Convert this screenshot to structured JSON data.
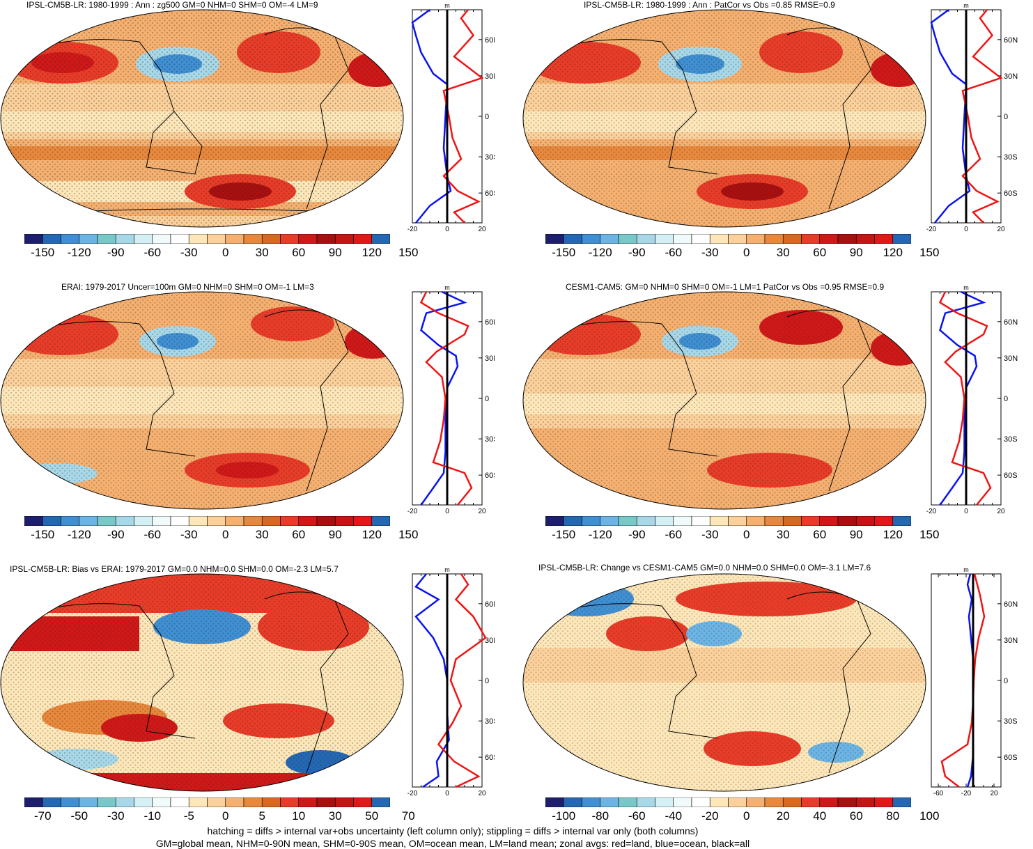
{
  "panels": [
    {
      "title": "IPSL-CM5B-LR: 1980-1999 : Ann : zg500 GM=0 NHM=0 SHM=0 OM=-4 LM=9",
      "colorbar": [
        "-150",
        "-120",
        "-90",
        "-60",
        "-30",
        "0",
        "30",
        "60",
        "90",
        "120",
        "150"
      ],
      "zonal_ticks": [
        "-20",
        "0",
        "20"
      ]
    },
    {
      "title": "IPSL-CM5B-LR: 1980-1999 : Ann : PatCor vs Obs =0.85 RMSE=0.9",
      "colorbar": [
        "-150",
        "-120",
        "-90",
        "-60",
        "-30",
        "0",
        "30",
        "60",
        "90",
        "120",
        "150"
      ],
      "zonal_ticks": [
        "-20",
        "0",
        "20"
      ]
    },
    {
      "title": "ERAI: 1979-2017 Uncer=100m GM=0 NHM=0 SHM=0 OM=-1 LM=3",
      "colorbar": [
        "-150",
        "-120",
        "-90",
        "-60",
        "-30",
        "0",
        "30",
        "60",
        "90",
        "120",
        "150"
      ],
      "zonal_ticks": [
        "-20",
        "0",
        "20"
      ]
    },
    {
      "title": "CESM1-CAM5: GM=0 NHM=0 SHM=0 OM=-1 LM=1 PatCor vs Obs =0.95 RMSE=0.9",
      "colorbar": [
        "-150",
        "-120",
        "-90",
        "-60",
        "-30",
        "0",
        "30",
        "60",
        "90",
        "120",
        "150"
      ],
      "zonal_ticks": [
        "-20",
        "0",
        "20"
      ]
    },
    {
      "title": "IPSL-CM5B-LR: Bias vs ERAI: 1979-2017 GM=0.0 NHM=0.0 SHM=0.0 OM=-2.3 LM=5.7",
      "colorbar": [
        "-70",
        "-50",
        "-30",
        "-10",
        "-5",
        "0",
        "5",
        "10",
        "30",
        "50",
        "70"
      ],
      "zonal_ticks": [
        "-20",
        "0",
        "20"
      ]
    },
    {
      "title": "IPSL-CM5B-LR: Change vs CESM1-CAM5 GM=0.0 NHM=0.0 SHM=0.0 OM=-3.1 LM=7.6",
      "colorbar": [
        "-100",
        "-80",
        "-60",
        "-40",
        "-20",
        "0",
        "20",
        "40",
        "60",
        "80",
        "100"
      ],
      "zonal_ticks": [
        "-60",
        "-20",
        "20"
      ]
    }
  ],
  "lat_labels": [
    "60N",
    "30N",
    "0",
    "30S",
    "60S"
  ],
  "zonal_unit": "m",
  "palette": [
    "#1e1e6e",
    "#2468b4",
    "#3f8fd2",
    "#6cb4e4",
    "#78c8c8",
    "#a8d8e8",
    "#d4f0f4",
    "#f8fcfc",
    "#ffffff",
    "#fde6b8",
    "#fbd09a",
    "#f5b070",
    "#e8883c",
    "#d86820",
    "#e83c28",
    "#d01818",
    "#a81010",
    "#c41414",
    "#e21818",
    "#b2182b"
  ],
  "chart_data": [
    {
      "type": "heatmap",
      "panel": "IPSL-CM5B-LR 1980-1999 Ann zg500",
      "units": "m",
      "levels": [
        -150,
        -120,
        -90,
        -60,
        -30,
        0,
        30,
        60,
        90,
        120,
        150
      ],
      "zonal_avg": {
        "lat_ticks": [
          "60N",
          "30N",
          "0",
          "30S",
          "60S"
        ],
        "xlim": [
          -20,
          20
        ],
        "series": [
          {
            "name": "land",
            "color": "red"
          },
          {
            "name": "ocean",
            "color": "blue"
          },
          {
            "name": "all",
            "color": "black"
          }
        ]
      }
    },
    {
      "type": "heatmap",
      "panel": "IPSL-CM5B-LR PatCor vs Obs",
      "units": "m",
      "levels": [
        -150,
        -120,
        -90,
        -60,
        -30,
        0,
        30,
        60,
        90,
        120,
        150
      ],
      "patcor": 0.85,
      "rmse": 0.9
    },
    {
      "type": "heatmap",
      "panel": "ERAI 1979-2017",
      "units": "m",
      "levels": [
        -150,
        -120,
        -90,
        -60,
        -30,
        0,
        30,
        60,
        90,
        120,
        150
      ],
      "uncertainty_m": 100
    },
    {
      "type": "heatmap",
      "panel": "CESM1-CAM5",
      "units": "m",
      "levels": [
        -150,
        -120,
        -90,
        -60,
        -30,
        0,
        30,
        60,
        90,
        120,
        150
      ],
      "patcor": 0.95,
      "rmse": 0.9
    },
    {
      "type": "heatmap",
      "panel": "IPSL-CM5B-LR Bias vs ERAI",
      "units": "m",
      "levels": [
        -70,
        -50,
        -30,
        -10,
        -5,
        0,
        5,
        10,
        30,
        50,
        70
      ]
    },
    {
      "type": "heatmap",
      "panel": "IPSL-CM5B-LR Change vs CESM1-CAM5",
      "units": "m",
      "levels": [
        -100,
        -80,
        -60,
        -40,
        -20,
        0,
        20,
        40,
        60,
        80,
        100
      ]
    }
  ],
  "footer": {
    "line1": "hatching = diffs > internal var+obs uncertainty (left column only); stippling = diffs > internal var only (both columns)",
    "line2": "GM=global mean, NHM=0-90N mean, SHM=0-90S mean, OM=ocean mean, LM=land mean; zonal avgs: red=land, blue=ocean, black=all"
  }
}
